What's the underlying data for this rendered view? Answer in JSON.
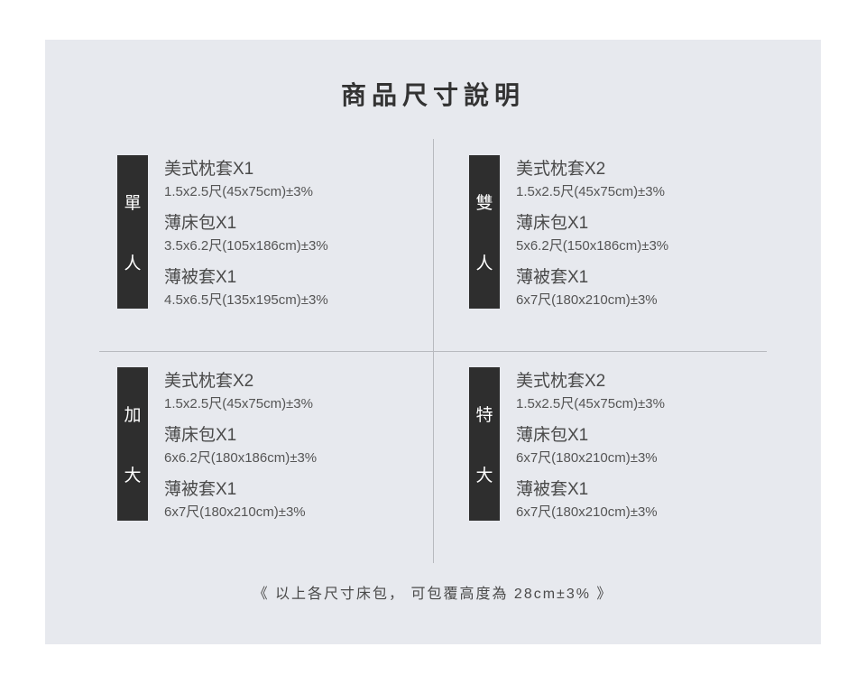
{
  "title": "商品尺寸說明",
  "footer": "《 以上各尺寸床包， 可包覆高度為 28cm±3% 》",
  "colors": {
    "page_bg": "#ffffff",
    "panel_bg": "#e7e9ee",
    "badge_bg": "#2e2e2e",
    "badge_fg": "#ffffff",
    "text_main": "#4a4a4a",
    "text_sub": "#555555",
    "divider": "#b8babf"
  },
  "sizes": [
    {
      "label_top": "單",
      "label_bottom": "人",
      "items": [
        {
          "name": "美式枕套X1",
          "dim": "1.5x2.5尺(45x75cm)±3%"
        },
        {
          "name": "薄床包X1",
          "dim": "3.5x6.2尺(105x186cm)±3%"
        },
        {
          "name": "薄被套X1",
          "dim": "4.5x6.5尺(135x195cm)±3%"
        }
      ]
    },
    {
      "label_top": "雙",
      "label_bottom": "人",
      "items": [
        {
          "name": "美式枕套X2",
          "dim": "1.5x2.5尺(45x75cm)±3%"
        },
        {
          "name": "薄床包X1",
          "dim": "5x6.2尺(150x186cm)±3%"
        },
        {
          "name": "薄被套X1",
          "dim": "6x7尺(180x210cm)±3%"
        }
      ]
    },
    {
      "label_top": "加",
      "label_bottom": "大",
      "items": [
        {
          "name": "美式枕套X2",
          "dim": "1.5x2.5尺(45x75cm)±3%"
        },
        {
          "name": "薄床包X1",
          "dim": "6x6.2尺(180x186cm)±3%"
        },
        {
          "name": "薄被套X1",
          "dim": "6x7尺(180x210cm)±3%"
        }
      ]
    },
    {
      "label_top": "特",
      "label_bottom": "大",
      "items": [
        {
          "name": "美式枕套X2",
          "dim": "1.5x2.5尺(45x75cm)±3%"
        },
        {
          "name": "薄床包X1",
          "dim": "6x7尺(180x210cm)±3%"
        },
        {
          "name": "薄被套X1",
          "dim": "6x7尺(180x210cm)±3%"
        }
      ]
    }
  ]
}
